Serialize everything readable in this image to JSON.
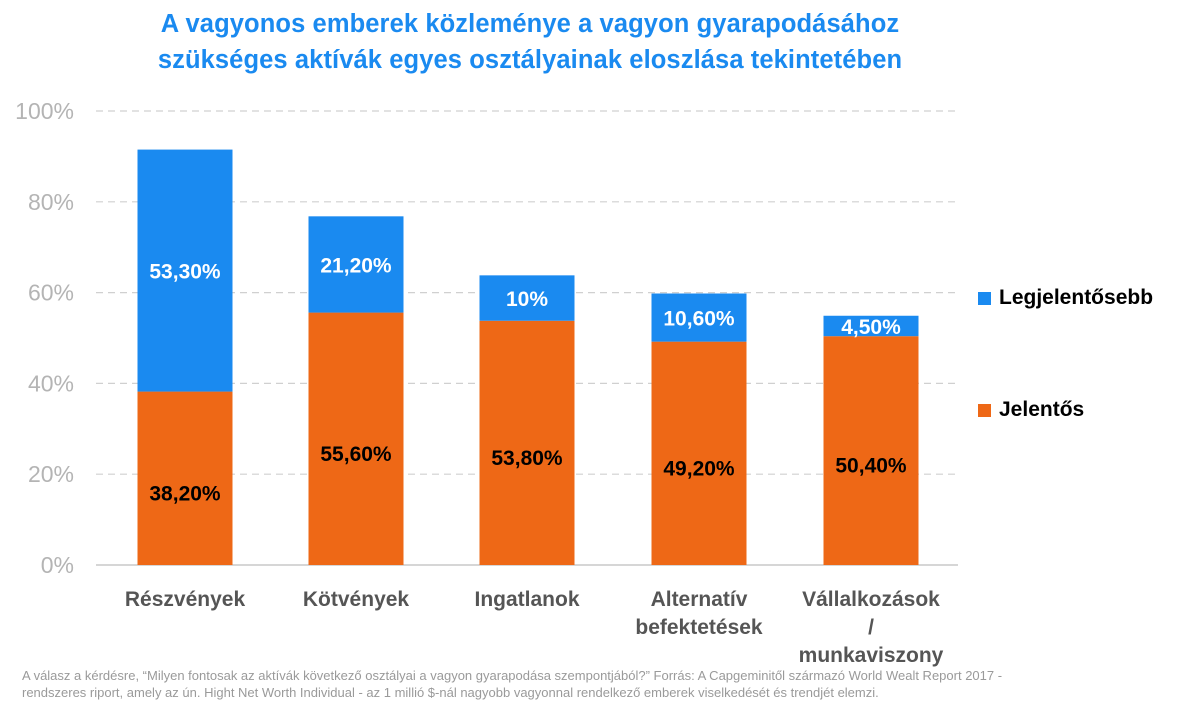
{
  "title_line1": "A vagyonos emberek közleménye a vagyon gyarapodásához",
  "title_line2": "szükséges aktívák egyes osztályainak eloszlása tekintetében",
  "footnote_line1": "A válasz a kérdésre, “Milyen fontosak az aktívák következő osztályai a vagyon gyarapodása szempontjából?”  Forrás: A Capgeminitől származó World Wealt Report 2017 -",
  "footnote_line2": "rendszeres riport, amely az ún. Hight Net Worth Individual - az 1 millió $-nál nagyobb vagyonnal rendelkező emberek viselkedését és trendjét elemzi.",
  "colors": {
    "title": "#1a8af0",
    "legjelentosebb": "#1a8af0",
    "jelentos": "#ee6816",
    "grid": "#d0d0d0",
    "tick": "#b4b4b4"
  },
  "legend": [
    {
      "label": "Legjelentősebb",
      "color": "#1a8af0"
    },
    {
      "label": "Jelentős",
      "color": "#ee6816"
    }
  ],
  "chart_data": {
    "type": "bar",
    "stacked": true,
    "categories": [
      [
        "Részvények"
      ],
      [
        "Kötvények"
      ],
      [
        "Ingatlanok"
      ],
      [
        "Alternatív",
        "befektetések"
      ],
      [
        "Vállalkozások",
        "/",
        "munkaviszony"
      ]
    ],
    "series": [
      {
        "name": "Jelentős",
        "values": [
          38.2,
          55.6,
          53.8,
          49.2,
          50.4
        ],
        "labels": [
          "38,20%",
          "55,60%",
          "53,80%",
          "49,20%",
          "50,40%"
        ]
      },
      {
        "name": "Legjelentősebb",
        "values": [
          53.3,
          21.2,
          10,
          10.6,
          4.5
        ],
        "labels": [
          "53,30%",
          "21,20%",
          "10%",
          "10,60%",
          "4,50%"
        ]
      }
    ],
    "yticks": [
      "0%",
      "20%",
      "40%",
      "60%",
      "80%",
      "100%"
    ],
    "ylim": [
      0,
      100
    ],
    "grid": true,
    "legend_position": "right"
  }
}
